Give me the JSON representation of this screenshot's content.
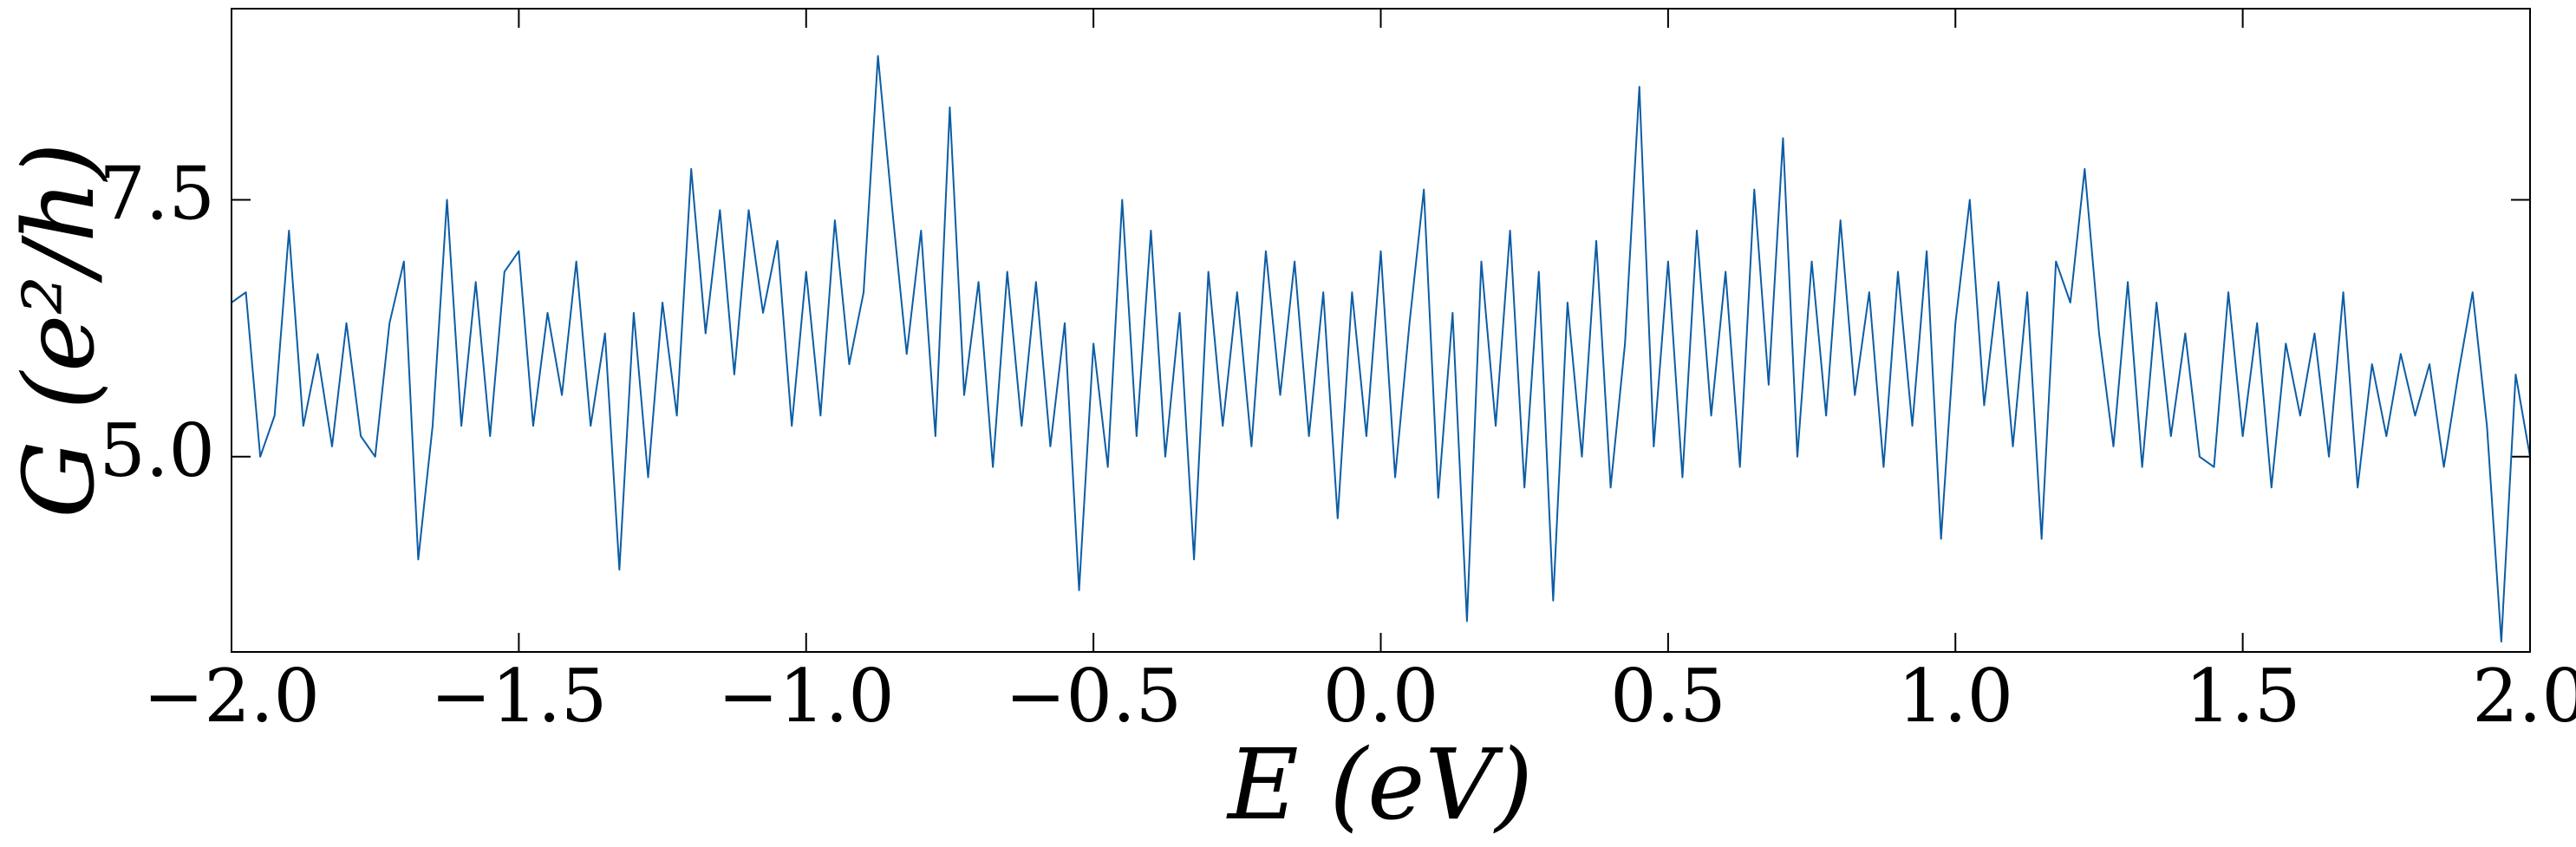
{
  "chart_data": {
    "type": "line",
    "xlabel": "E (eV)",
    "ylabel": "G (e²/h)",
    "x": [
      -2.0,
      -1.975,
      -1.95,
      -1.925,
      -1.9,
      -1.875,
      -1.85,
      -1.825,
      -1.8,
      -1.775,
      -1.75,
      -1.725,
      -1.7,
      -1.675,
      -1.65,
      -1.625,
      -1.6,
      -1.575,
      -1.55,
      -1.525,
      -1.5,
      -1.475,
      -1.45,
      -1.425,
      -1.4,
      -1.375,
      -1.35,
      -1.325,
      -1.3,
      -1.275,
      -1.25,
      -1.225,
      -1.2,
      -1.175,
      -1.15,
      -1.125,
      -1.1,
      -1.075,
      -1.05,
      -1.025,
      -1.0,
      -0.975,
      -0.95,
      -0.925,
      -0.9,
      -0.875,
      -0.85,
      -0.825,
      -0.8,
      -0.775,
      -0.75,
      -0.725,
      -0.7,
      -0.675,
      -0.65,
      -0.625,
      -0.6,
      -0.575,
      -0.55,
      -0.525,
      -0.5,
      -0.475,
      -0.45,
      -0.425,
      -0.4,
      -0.375,
      -0.35,
      -0.325,
      -0.3,
      -0.275,
      -0.25,
      -0.225,
      -0.2,
      -0.175,
      -0.15,
      -0.125,
      -0.1,
      -0.075,
      -0.05,
      -0.025,
      0.0,
      0.025,
      0.05,
      0.075,
      0.1,
      0.125,
      0.15,
      0.175,
      0.2,
      0.225,
      0.25,
      0.275,
      0.3,
      0.325,
      0.35,
      0.375,
      0.4,
      0.425,
      0.45,
      0.475,
      0.5,
      0.525,
      0.55,
      0.575,
      0.6,
      0.625,
      0.65,
      0.675,
      0.7,
      0.725,
      0.75,
      0.775,
      0.8,
      0.825,
      0.85,
      0.875,
      0.9,
      0.925,
      0.95,
      0.975,
      1.0,
      1.025,
      1.05,
      1.075,
      1.1,
      1.125,
      1.15,
      1.175,
      1.2,
      1.225,
      1.25,
      1.275,
      1.3,
      1.325,
      1.35,
      1.375,
      1.4,
      1.425,
      1.45,
      1.475,
      1.5,
      1.525,
      1.55,
      1.575,
      1.6,
      1.625,
      1.65,
      1.675,
      1.7,
      1.725,
      1.75,
      1.775,
      1.8,
      1.825,
      1.85,
      1.875,
      1.9,
      1.925,
      1.95,
      1.975,
      2.0
    ],
    "series": [
      {
        "color": "#0C5DA5",
        "values": [
          6.5,
          6.6,
          5.0,
          5.4,
          7.2,
          5.3,
          6.0,
          5.1,
          6.3,
          5.2,
          5.0,
          6.3,
          6.9,
          4.0,
          5.3,
          7.5,
          5.3,
          6.7,
          5.2,
          6.8,
          7.0,
          5.3,
          6.4,
          5.6,
          6.9,
          5.3,
          6.2,
          3.9,
          6.4,
          4.8,
          6.5,
          5.4,
          7.8,
          6.2,
          7.4,
          5.8,
          7.4,
          6.4,
          7.1,
          5.3,
          6.8,
          5.4,
          7.3,
          5.9,
          6.6,
          8.9,
          7.4,
          6.0,
          7.2,
          5.2,
          8.4,
          5.6,
          6.7,
          4.9,
          6.8,
          5.3,
          6.7,
          5.1,
          6.3,
          3.7,
          6.1,
          4.9,
          7.5,
          5.2,
          7.2,
          5.0,
          6.4,
          4.0,
          6.8,
          5.3,
          6.6,
          5.1,
          7.0,
          5.6,
          6.9,
          5.2,
          6.6,
          4.4,
          6.6,
          5.2,
          7.0,
          4.8,
          6.3,
          7.6,
          4.6,
          6.4,
          3.4,
          6.9,
          5.3,
          7.2,
          4.7,
          6.8,
          3.6,
          6.5,
          5.0,
          7.1,
          4.7,
          6.1,
          8.6,
          5.1,
          6.9,
          4.8,
          7.2,
          5.4,
          6.8,
          4.9,
          7.6,
          5.7,
          8.1,
          5.0,
          6.9,
          5.4,
          7.3,
          5.6,
          6.6,
          4.9,
          6.8,
          5.3,
          7.0,
          4.2,
          6.3,
          7.5,
          5.5,
          6.7,
          5.1,
          6.6,
          4.2,
          6.9,
          6.5,
          7.8,
          6.2,
          5.1,
          6.7,
          4.9,
          6.5,
          5.2,
          6.2,
          5.0,
          4.9,
          6.6,
          5.2,
          6.3,
          4.7,
          6.1,
          5.4,
          6.2,
          5.0,
          6.6,
          4.7,
          5.9,
          5.2,
          6.0,
          5.4,
          5.9,
          4.9,
          5.8,
          6.6,
          5.3,
          3.2,
          5.8,
          5.0
        ]
      }
    ],
    "xlim": [
      -2.0,
      2.0
    ],
    "xticks": [
      {
        "value": -2.0,
        "label": "−2.0"
      },
      {
        "value": -1.5,
        "label": "−1.5"
      },
      {
        "value": -1.0,
        "label": "−1.0"
      },
      {
        "value": -0.5,
        "label": "−0.5"
      },
      {
        "value": 0.0,
        "label": "0.0"
      },
      0.5,
      {
        "value": 1.0,
        "label": "1.0"
      },
      1.5,
      {
        "value": 2.0,
        "label": "2.0"
      }
    ],
    "ylim": [
      3.1,
      9.36
    ],
    "yticks": [
      {
        "value": 5.0,
        "label": "5.0"
      },
      7.5
    ],
    "grid": false
  }
}
